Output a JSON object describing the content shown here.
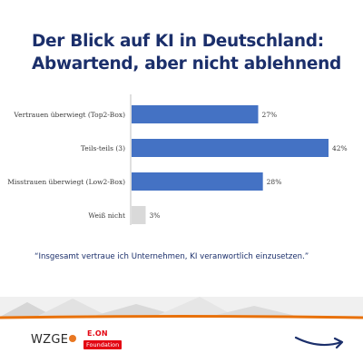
{
  "header": {
    "title_line1": "Der Blick auf KI in Deutschland:",
    "title_line2": "Abwartend, aber nicht ablehnend"
  },
  "chart_data": {
    "type": "bar",
    "orientation": "horizontal",
    "categories": [
      "Vertrauen überwiegt (Top2-Box)",
      "Teils-teils (3)",
      "Misstrauen überwiegt (Low2-Box)",
      "Weiß nicht"
    ],
    "values": [
      27,
      42,
      28,
      3
    ],
    "value_labels": [
      "27%",
      "42%",
      "28%",
      "3%"
    ],
    "unit": "%",
    "xlim": [
      0,
      42
    ],
    "colors": {
      "bar": "#4472c4",
      "bar_unknown": "#d9d9d9",
      "axis": "#bfbfbf"
    },
    "grid": false,
    "legend": "none"
  },
  "quote": {
    "text": "“Insgesamt vertraue ich Unternehmen, KI veranwortlich einzusetzen.”"
  },
  "footer": {
    "logo_wzge": "WZGE",
    "logo_eon": "E.ON",
    "logo_eon_foundation": "Foundation",
    "accent_orange": "#e8710a",
    "navy": "#1b2f6b",
    "arrow_icon": "arrow-right-icon"
  }
}
